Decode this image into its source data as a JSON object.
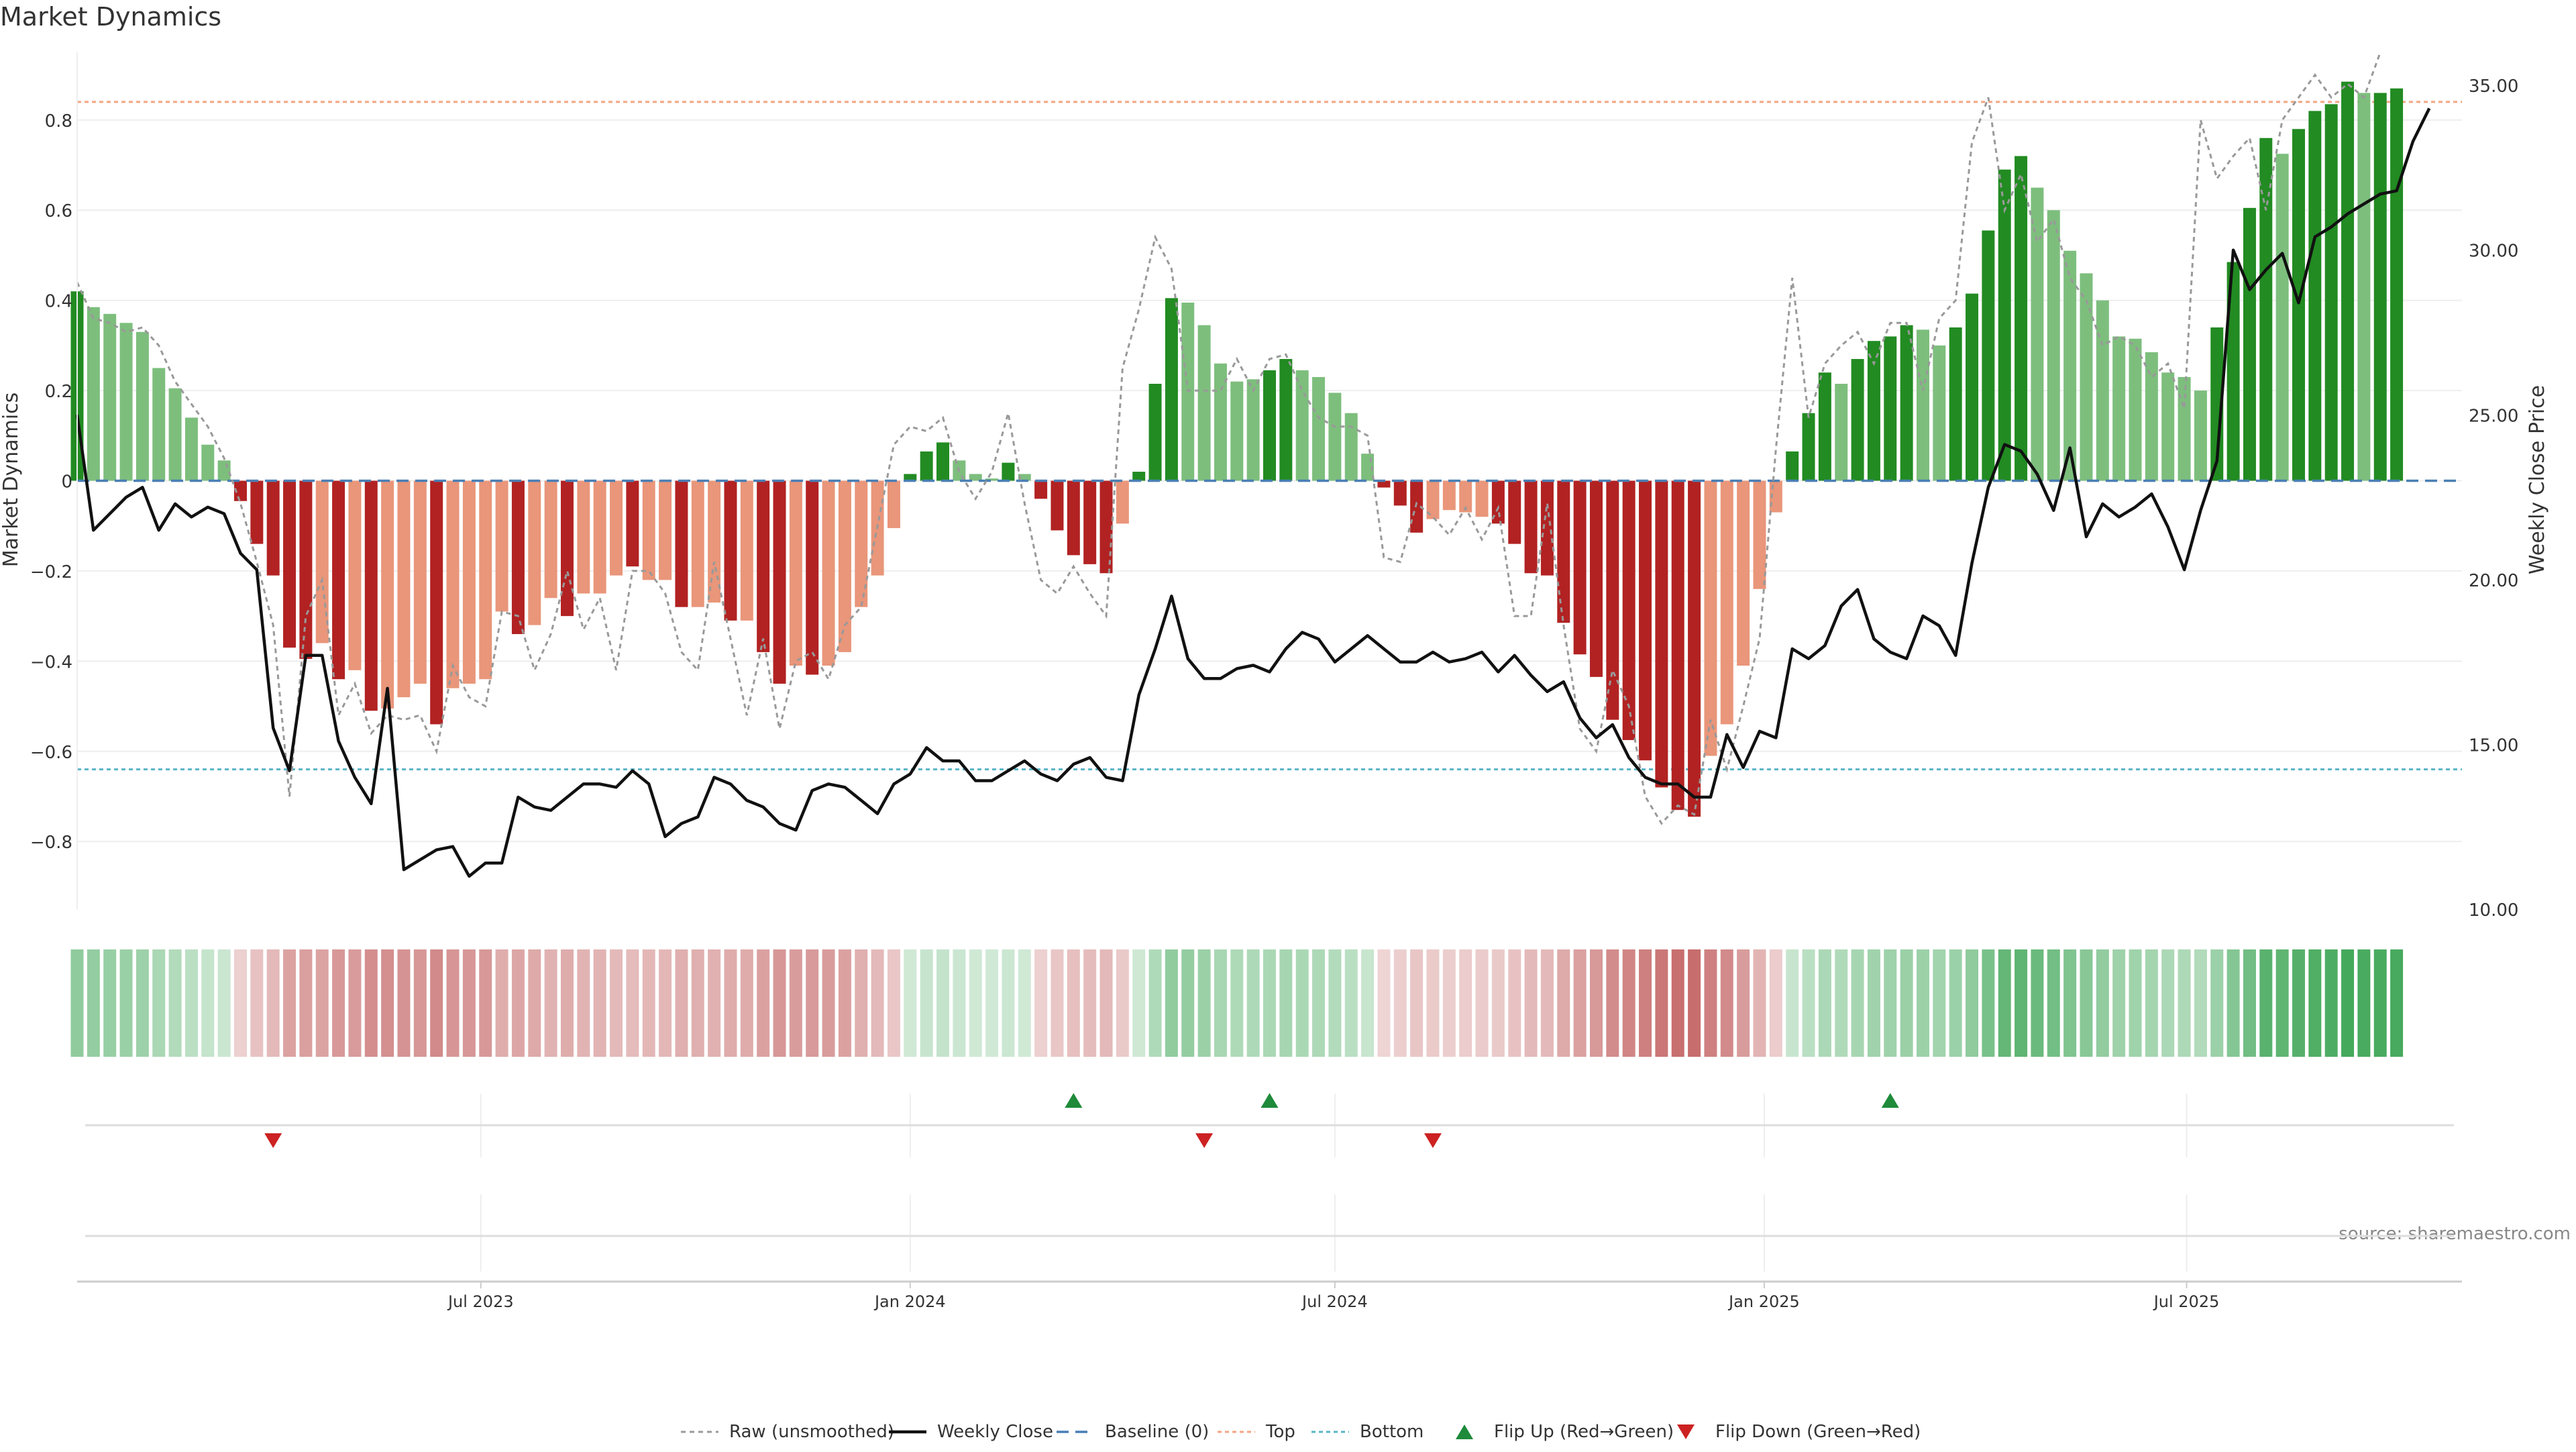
{
  "chart_data": {
    "type": "bar",
    "title": "Market Dynamics",
    "ylabel": "Market Dynamics",
    "y2label": "Weekly Close Price",
    "source": "source: sharemaestro.com",
    "ylim": [
      -0.95,
      0.95
    ],
    "y2lim": [
      10,
      36
    ],
    "xlim": [
      "2023-01-09",
      "2025-10-27"
    ],
    "legend_position": "bottom-center",
    "grid": true,
    "top_line": 0.84,
    "bottom_line": -0.64,
    "y_ticks": [
      {
        "value": 0.8,
        "label": "0.8"
      },
      {
        "value": 0.6,
        "label": "0.6"
      },
      {
        "value": 0.4,
        "label": "0.4"
      },
      {
        "value": 0.2,
        "label": "0.2"
      },
      {
        "value": 0,
        "label": "0"
      },
      {
        "value": -0.2,
        "label": "−0.2"
      },
      {
        "value": -0.4,
        "label": "−0.4"
      },
      {
        "value": -0.6,
        "label": "−0.6"
      },
      {
        "value": -0.8,
        "label": "−0.8"
      }
    ],
    "y2_ticks": [
      {
        "value": 35,
        "label": "35.00"
      },
      {
        "value": 30,
        "label": "30.00"
      },
      {
        "value": 25,
        "label": "25.00"
      },
      {
        "value": 20,
        "label": "20.00"
      },
      {
        "value": 15,
        "label": "15.00"
      },
      {
        "value": 10,
        "label": "10.00"
      }
    ],
    "x_ticks": [
      {
        "date": "2023-07-01",
        "label": "Jul 2023"
      },
      {
        "date": "2024-01-01",
        "label": "Jan 2024"
      },
      {
        "date": "2024-07-01",
        "label": "Jul 2024"
      },
      {
        "date": "2025-01-01",
        "label": "Jan 2025"
      },
      {
        "date": "2025-07-01",
        "label": "Jul 2025"
      }
    ],
    "first_week": "2023-01-09",
    "week_step_days": 7,
    "colors": {
      "strong_green": "#228b22",
      "light_green": "#7dbe7d",
      "strong_red": "#b22222",
      "light_red": "#e9967a",
      "close": "#111111",
      "raw": "#999999",
      "baseline": "#4a7fb5",
      "top": "#f4a582",
      "bottom": "#5ab4c5",
      "flip_up": "#1e8a3a",
      "flip_down": "#cc2222"
    },
    "smoothed": [
      0.42,
      0.385,
      0.37,
      0.35,
      0.33,
      0.25,
      0.205,
      0.14,
      0.08,
      0.045,
      -0.045,
      -0.14,
      -0.21,
      -0.37,
      -0.395,
      -0.36,
      -0.44,
      -0.42,
      -0.51,
      -0.505,
      -0.48,
      -0.45,
      -0.54,
      -0.46,
      -0.45,
      -0.44,
      -0.29,
      -0.34,
      -0.32,
      -0.26,
      -0.3,
      -0.25,
      -0.25,
      -0.21,
      -0.19,
      -0.22,
      -0.22,
      -0.28,
      -0.28,
      -0.27,
      -0.31,
      -0.31,
      -0.38,
      -0.45,
      -0.41,
      -0.43,
      -0.41,
      -0.38,
      -0.28,
      -0.21,
      -0.105,
      0.015,
      0.065,
      0.085,
      0.045,
      0.015,
      0.005,
      0.04,
      0.015,
      -0.04,
      -0.11,
      -0.165,
      -0.185,
      -0.205,
      -0.095,
      0.02,
      0.215,
      0.405,
      0.395,
      0.345,
      0.26,
      0.22,
      0.225,
      0.245,
      0.27,
      0.245,
      0.23,
      0.195,
      0.15,
      0.06,
      -0.015,
      -0.055,
      -0.115,
      -0.085,
      -0.065,
      -0.07,
      -0.08,
      -0.095,
      -0.14,
      -0.205,
      -0.21,
      -0.315,
      -0.385,
      -0.435,
      -0.53,
      -0.575,
      -0.62,
      -0.68,
      -0.73,
      -0.745,
      -0.61,
      -0.54,
      -0.41,
      -0.24,
      -0.07,
      0.065,
      0.15,
      0.24,
      0.215,
      0.27,
      0.31,
      0.32,
      0.345,
      0.335,
      0.3,
      0.34,
      0.415,
      0.555,
      0.69,
      0.72,
      0.65,
      0.6,
      0.51,
      0.46,
      0.4,
      0.32,
      0.315,
      0.285,
      0.24,
      0.23,
      0.2,
      0.34,
      0.485,
      0.605,
      0.76,
      0.725,
      0.78,
      0.82,
      0.835,
      0.885,
      0.86,
      0.86,
      0.87
    ],
    "raw": [
      0.44,
      0.36,
      0.35,
      0.33,
      0.34,
      0.3,
      0.22,
      0.17,
      0.12,
      0.05,
      -0.05,
      -0.18,
      -0.32,
      -0.7,
      -0.3,
      -0.22,
      -0.52,
      -0.45,
      -0.56,
      -0.52,
      -0.53,
      -0.52,
      -0.6,
      -0.41,
      -0.48,
      -0.5,
      -0.29,
      -0.3,
      -0.42,
      -0.34,
      -0.2,
      -0.33,
      -0.26,
      -0.42,
      -0.2,
      -0.2,
      -0.25,
      -0.38,
      -0.42,
      -0.18,
      -0.35,
      -0.52,
      -0.35,
      -0.55,
      -0.4,
      -0.38,
      -0.44,
      -0.32,
      -0.28,
      -0.1,
      0.08,
      0.12,
      0.11,
      0.14,
      0.02,
      -0.04,
      0.02,
      0.15,
      -0.05,
      -0.22,
      -0.25,
      -0.19,
      -0.25,
      -0.3,
      0.25,
      0.38,
      0.54,
      0.47,
      0.2,
      0.2,
      0.2,
      0.27,
      0.2,
      0.27,
      0.28,
      0.2,
      0.14,
      0.12,
      0.12,
      0.1,
      -0.17,
      -0.18,
      -0.05,
      -0.08,
      -0.12,
      -0.06,
      -0.13,
      -0.06,
      -0.3,
      -0.3,
      -0.05,
      -0.32,
      -0.55,
      -0.6,
      -0.42,
      -0.5,
      -0.7,
      -0.76,
      -0.72,
      -0.74,
      -0.53,
      -0.64,
      -0.5,
      -0.35,
      0.07,
      0.45,
      0.14,
      0.26,
      0.3,
      0.33,
      0.26,
      0.35,
      0.35,
      0.2,
      0.36,
      0.4,
      0.75,
      0.85,
      0.6,
      0.68,
      0.53,
      0.58,
      0.45,
      0.4,
      0.3,
      0.32,
      0.3,
      0.23,
      0.26,
      0.16,
      0.8,
      0.67,
      0.72,
      0.76,
      0.6,
      0.8,
      0.85,
      0.9,
      0.85,
      0.88,
      0.85,
      0.95
    ],
    "close": [
      25.0,
      21.5,
      22.0,
      22.5,
      22.8,
      21.5,
      22.3,
      21.9,
      22.2,
      22.0,
      20.8,
      20.3,
      15.5,
      14.2,
      17.7,
      17.7,
      15.1,
      14.0,
      13.2,
      16.7,
      11.2,
      11.5,
      11.8,
      11.9,
      11.0,
      11.4,
      11.4,
      13.4,
      13.1,
      13.0,
      13.4,
      13.8,
      13.8,
      13.7,
      14.2,
      13.8,
      12.2,
      12.6,
      12.8,
      14.0,
      13.8,
      13.3,
      13.1,
      12.6,
      12.4,
      13.6,
      13.8,
      13.7,
      13.3,
      12.9,
      13.8,
      14.1,
      14.9,
      14.5,
      14.5,
      13.9,
      13.9,
      14.2,
      14.5,
      14.1,
      13.9,
      14.4,
      14.6,
      14.0,
      13.9,
      16.5,
      17.9,
      19.5,
      17.6,
      17.0,
      17.0,
      17.3,
      17.4,
      17.2,
      17.9,
      18.4,
      18.2,
      17.5,
      17.9,
      18.3,
      17.9,
      17.5,
      17.5,
      17.8,
      17.5,
      17.6,
      17.8,
      17.2,
      17.7,
      17.1,
      16.6,
      16.9,
      15.8,
      15.2,
      15.6,
      14.6,
      14.0,
      13.8,
      13.8,
      13.4,
      13.4,
      15.3,
      14.3,
      15.4,
      15.2,
      17.9,
      17.6,
      18.0,
      19.2,
      19.7,
      18.2,
      17.8,
      17.6,
      18.9,
      18.6,
      17.7,
      20.5,
      22.8,
      24.1,
      23.9,
      23.2,
      22.1,
      24.0,
      21.3,
      22.3,
      21.9,
      22.2,
      22.6,
      21.6,
      20.3,
      22.1,
      23.6,
      30.0,
      28.8,
      29.4,
      29.9,
      28.4,
      30.4,
      30.7,
      31.1,
      31.4,
      31.7,
      31.8,
      33.3,
      34.3
    ],
    "bar_shades": [
      "strong",
      "light",
      "light",
      "light",
      "light",
      "light",
      "light",
      "light",
      "light",
      "light",
      "strong",
      "strong",
      "strong",
      "strong",
      "strong",
      "light",
      "strong",
      "light",
      "strong",
      "light",
      "light",
      "light",
      "strong",
      "light",
      "light",
      "light",
      "light",
      "strong",
      "light",
      "light",
      "strong",
      "light",
      "light",
      "light",
      "strong",
      "light",
      "light",
      "strong",
      "light",
      "light",
      "strong",
      "light",
      "strong",
      "strong",
      "light",
      "strong",
      "light",
      "light",
      "light",
      "light",
      "light",
      "strong",
      "strong",
      "strong",
      "light",
      "light",
      "light",
      "strong",
      "light",
      "strong",
      "strong",
      "strong",
      "strong",
      "strong",
      "light",
      "strong",
      "strong",
      "strong",
      "light",
      "light",
      "light",
      "light",
      "light",
      "strong",
      "strong",
      "light",
      "light",
      "light",
      "light",
      "light",
      "strong",
      "strong",
      "strong",
      "light",
      "light",
      "light",
      "light",
      "strong",
      "strong",
      "strong",
      "strong",
      "strong",
      "strong",
      "strong",
      "strong",
      "strong",
      "strong",
      "strong",
      "strong",
      "strong",
      "light",
      "light",
      "light",
      "light",
      "light",
      "strong",
      "strong",
      "strong",
      "light",
      "strong",
      "strong",
      "strong",
      "strong",
      "light",
      "light",
      "strong",
      "strong",
      "strong",
      "strong",
      "strong",
      "light",
      "light",
      "light",
      "light",
      "light",
      "light",
      "light",
      "light",
      "light",
      "light",
      "light",
      "strong",
      "strong",
      "strong",
      "strong",
      "light",
      "strong",
      "strong",
      "strong",
      "strong",
      "light",
      "strong",
      "strong"
    ],
    "flips": [
      {
        "date": "2023-04-03",
        "direction": "down"
      },
      {
        "date": "2024-03-11",
        "direction": "up"
      },
      {
        "date": "2024-05-06",
        "direction": "down"
      },
      {
        "date": "2024-06-03",
        "direction": "up"
      },
      {
        "date": "2024-08-12",
        "direction": "down"
      },
      {
        "date": "2025-02-24",
        "direction": "up"
      }
    ],
    "legend": [
      {
        "key": "raw",
        "label": "Raw (unsmoothed)"
      },
      {
        "key": "close",
        "label": "Weekly Close"
      },
      {
        "key": "baseline",
        "label": "Baseline (0)"
      },
      {
        "key": "top",
        "label": "Top"
      },
      {
        "key": "bottom",
        "label": "Bottom"
      },
      {
        "key": "flip_up",
        "label": "Flip Up (Red→Green)"
      },
      {
        "key": "flip_down",
        "label": "Flip Down (Green→Red)"
      }
    ]
  }
}
